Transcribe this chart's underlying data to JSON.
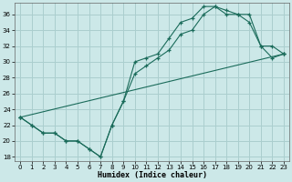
{
  "xlabel": "Humidex (Indice chaleur)",
  "bg_color": "#cce8e8",
  "line_color": "#1a6b5a",
  "grid_color": "#aacece",
  "xlim": [
    -0.5,
    23.5
  ],
  "ylim": [
    17.5,
    37.5
  ],
  "xticks": [
    0,
    1,
    2,
    3,
    4,
    5,
    6,
    7,
    8,
    9,
    10,
    11,
    12,
    13,
    14,
    15,
    16,
    17,
    18,
    19,
    20,
    21,
    22,
    23
  ],
  "yticks": [
    18,
    20,
    22,
    24,
    26,
    28,
    30,
    32,
    34,
    36
  ],
  "line1_x": [
    0,
    1,
    2,
    3,
    4,
    5,
    6,
    7,
    8,
    9,
    10,
    11,
    12,
    13,
    14,
    15,
    16,
    17,
    18,
    19,
    20,
    21,
    22,
    23
  ],
  "line1_y": [
    23,
    22,
    21,
    21,
    20,
    20,
    19,
    18,
    22,
    25,
    30,
    30.5,
    31,
    33,
    35,
    35.5,
    37,
    37,
    36.5,
    36,
    35,
    32,
    32,
    31
  ],
  "line2_x": [
    0,
    1,
    2,
    3,
    4,
    5,
    6,
    7,
    8,
    9,
    10,
    11,
    12,
    13,
    14,
    15,
    16,
    17,
    18,
    19,
    20,
    21,
    22,
    23
  ],
  "line2_y": [
    23,
    22,
    21,
    21,
    20,
    20,
    19,
    18,
    22,
    25,
    28.5,
    29.5,
    30.5,
    31.5,
    33.5,
    34,
    36,
    37,
    36,
    36,
    36,
    32,
    30.5,
    31
  ],
  "line3_x": [
    0,
    23
  ],
  "line3_y": [
    23,
    31
  ]
}
